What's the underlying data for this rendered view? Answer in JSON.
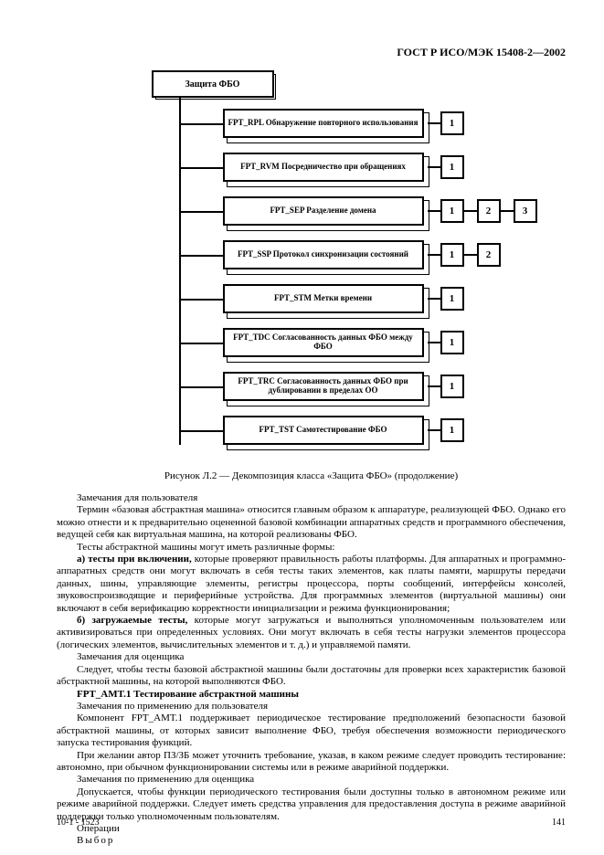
{
  "header": "ГОСТ Р ИСО/МЭК 15408-2—2002",
  "diagram": {
    "root": "Защита ФБО",
    "rows": [
      {
        "label": "FPT_RPL Обнаружение повторного использования",
        "nums": [
          "1"
        ]
      },
      {
        "label": "FPT_RVM Посредничество при обращениях",
        "nums": [
          "1"
        ]
      },
      {
        "label": "FPT_SEP Разделение домена",
        "nums": [
          "1",
          "2",
          "3"
        ]
      },
      {
        "label": "FPT_SSP Протокол синхронизации состояний",
        "nums": [
          "1",
          "2"
        ]
      },
      {
        "label": "FPT_STM Метки времени",
        "nums": [
          "1"
        ]
      },
      {
        "label": "FPT_TDC Согласованность данных ФБО между ФБО",
        "nums": [
          "1"
        ]
      },
      {
        "label": "FPT_TRC Согласованность данных ФБО при дублировании в пределах ОО",
        "nums": [
          "1"
        ]
      },
      {
        "label": "FPT_TST Самотестирование ФБО",
        "nums": [
          "1"
        ]
      }
    ]
  },
  "caption": "Рисунок Л.2 — Декомпозиция класса «Защита ФБО» (продолжение)",
  "paras": [
    {
      "t": "Замечания для пользователя"
    },
    {
      "t": "Термин «базовая абстрактная машина» относится главным образом к аппаратуре, реализующей ФБО. Однако его можно отнести и к предварительно оцененной базовой комбинации аппаратных средств и программного обеспечения, ведущей себя как виртуальная машина, на которой реализованы ФБО."
    },
    {
      "t": "Тесты абстрактной машины могут иметь различные формы:"
    },
    {
      "html": "<span class='b'>а) тесты при включении,</span> которые проверяют правильность работы платформы. Для аппаратных и программно-аппаратных средств они могут включать в себя тесты таких элементов, как платы памяти, маршруты передачи данных, шины, управляющие элементы, регистры процессора, порты сообщений, интерфейсы консолей, звуковоспроизводящие и периферийные устройства. Для программных элементов (виртуальной машины) они включают в себя верификацию корректности инициализации и режима функционирования;"
    },
    {
      "html": "<span class='b'>б) загружаемые тесты,</span> которые могут загружаться и выполняться уполномоченным пользователем или активизироваться при определенных условиях. Они могут включать в себя тесты нагрузки элементов процессора (логических элементов, вычислительных элементов и т. д.) и управляемой памяти."
    },
    {
      "t": "Замечания для оценщика"
    },
    {
      "t": "Следует, чтобы тесты базовой абстрактной машины были достаточны для проверки всех характеристик базовой абстрактной машины, на которой выполняются ФБО."
    },
    {
      "h": "FPT_AMT.1 Тестирование абстрактной машины"
    },
    {
      "t": "Замечания по применению для пользователя"
    },
    {
      "t": "Компонент FPT_AMT.1 поддерживает периодическое тестирование предположений безопасности базовой абстрактной машины, от которых зависит выполнение ФБО, требуя обеспечения возможности периодического запуска тестирования функций."
    },
    {
      "t": "При желании автор ПЗ/ЗБ может уточнить требование, указав, в каком режиме следует проводить тестирование: автономно, при обычном функционировании системы или в режиме аварийной поддержки."
    },
    {
      "t": "Замечания по применению для оценщика"
    },
    {
      "t": "Допускается, чтобы функции периодического тестирования были доступны только в автономном режиме или режиме аварийной поддержки. Следует иметь средства управления для предоставления доступа в режиме аварийной поддержки только уполномоченным пользователям."
    },
    {
      "t": "Операции"
    },
    {
      "sp": "Выбор"
    }
  ],
  "footL": "10-1 - 1523",
  "footR": "141"
}
